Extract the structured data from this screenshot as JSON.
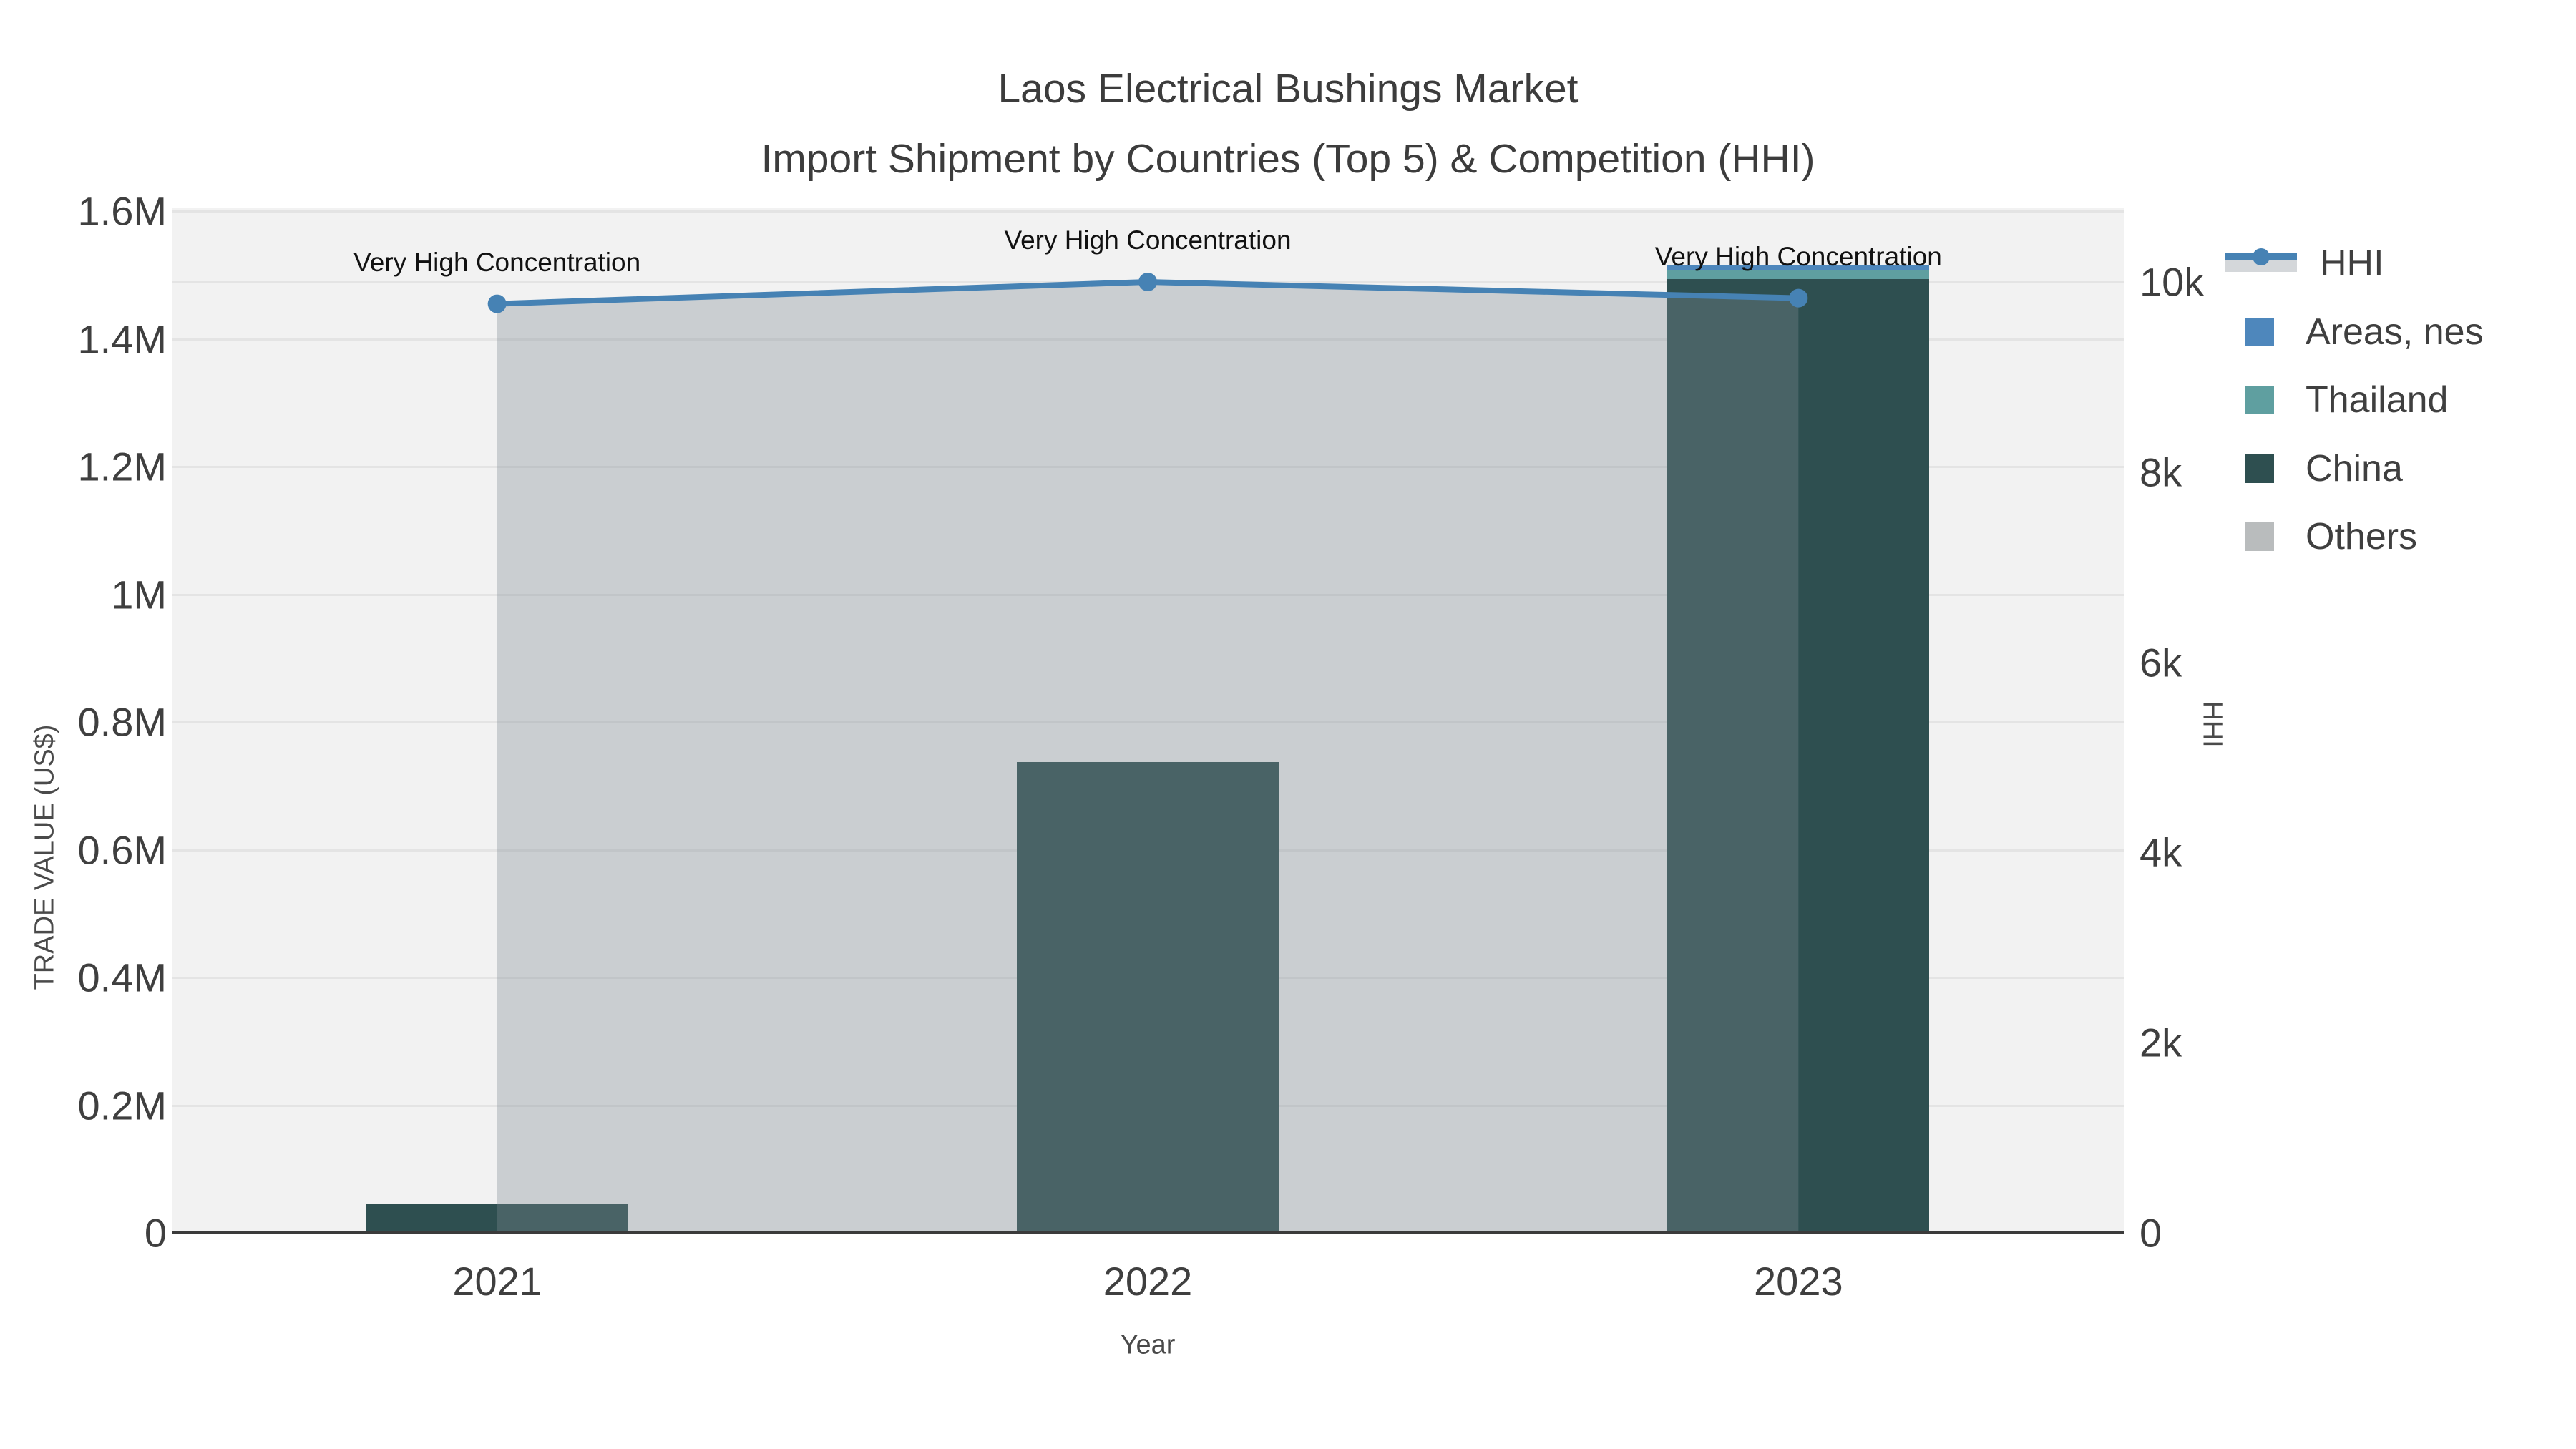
{
  "title": "Laos Electrical Bushings Market",
  "subtitle": "Import Shipment by Countries (Top 5) & Competition (HHI)",
  "colors": {
    "page_background": "#ffffff",
    "plot_background": "#f2f2f2",
    "gridline": "#e4e4e4",
    "axis_line": "#3b3b3b",
    "text": "#3f3f3f",
    "hhi_line": "#4682b4",
    "hhi_area": "rgba(125,137,148,0.34)",
    "areas_nes": "#4e87bc",
    "thailand": "#5f9fa0",
    "china": "#2e4f50",
    "others": "#b9bcbd"
  },
  "chart_data": {
    "type": "bar+line",
    "title": "Laos Electrical Bushings Market",
    "subtitle": "Import Shipment by Countries (Top 5) & Competition (HHI)",
    "categories": [
      "2021",
      "2022",
      "2023"
    ],
    "bar_series": [
      {
        "name": "Areas, nes",
        "color": "#4e87bc",
        "values": [
          0,
          0,
          9000
        ]
      },
      {
        "name": "Thailand",
        "color": "#5f9fa0",
        "values": [
          0,
          0,
          13000
        ]
      },
      {
        "name": "China",
        "color": "#2e4f50",
        "values": [
          46000,
          737000,
          1494000
        ]
      },
      {
        "name": "Others",
        "color": "#b9bcbd",
        "values": [
          0,
          0,
          0
        ]
      }
    ],
    "stack_order_bottom_to_top": [
      "China",
      "Thailand",
      "Areas, nes",
      "Others"
    ],
    "line_series": {
      "name": "HHI",
      "color": "#4682b4",
      "area_color": "rgba(125,137,148,0.34)",
      "axis": "right",
      "values": [
        9770,
        10000,
        9830
      ]
    },
    "annotations": [
      {
        "x": "2021",
        "text": "Very High Concentration"
      },
      {
        "x": "2022",
        "text": "Very High Concentration"
      },
      {
        "x": "2023",
        "text": "Very High Concentration"
      }
    ],
    "left_axis": {
      "label": "TRADE VALUE (US$)",
      "ticks": [
        "0",
        "0.2M",
        "0.4M",
        "0.6M",
        "0.8M",
        "1M",
        "1.2M",
        "1.4M",
        "1.6M"
      ],
      "tick_values": [
        0,
        200000,
        400000,
        600000,
        800000,
        1000000,
        1200000,
        1400000,
        1600000
      ],
      "max": 1600000,
      "grid": true
    },
    "right_axis": {
      "label": "HHI",
      "ticks": [
        "0",
        "2k",
        "4k",
        "6k",
        "8k",
        "10k"
      ],
      "tick_values": [
        0,
        2000,
        4000,
        6000,
        8000,
        10000
      ],
      "max": 10000,
      "gridline_at": 10000,
      "grid": false
    },
    "x_axis": {
      "label": "Year"
    },
    "legend": [
      "HHI",
      "Areas, nes",
      "Thailand",
      "China",
      "Others"
    ],
    "legend_position": "right"
  }
}
